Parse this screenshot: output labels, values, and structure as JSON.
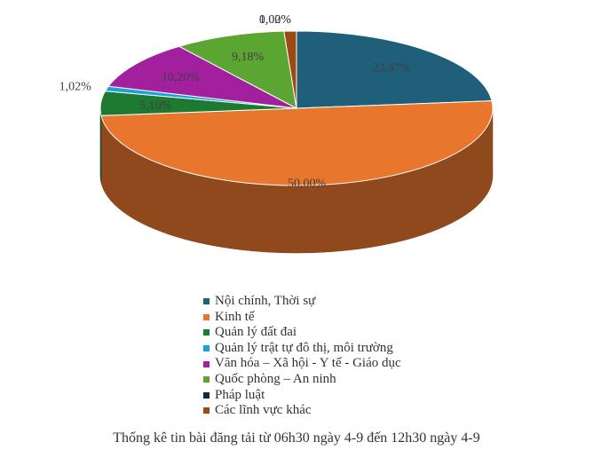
{
  "chart_data": {
    "type": "pie",
    "style": "3d",
    "title": "",
    "caption": "Thống kê tin bài đăng tải từ 06h30 ngày 4-9 đến 12h30 ngày 4-9",
    "legend_position": "bottom",
    "slices": [
      {
        "label": "Nội chính, Thời sự",
        "value": 23.47,
        "value_label": "23,47%",
        "color": "#1F5F7A"
      },
      {
        "label": "Kinh tế",
        "value": 50.0,
        "value_label": "50,00%",
        "color": "#E8762D"
      },
      {
        "label": "Quản lý đất đai",
        "value": 5.1,
        "value_label": "5,10%",
        "color": "#1E7A30"
      },
      {
        "label": "Quản lý trật tự đô thị, môi trường",
        "value": 1.02,
        "value_label": "1,02%",
        "color": "#1BA3D6"
      },
      {
        "label": "Văn hóa – Xã hội - Y tế - Giáo dục",
        "value": 10.2,
        "value_label": "10,20%",
        "color": "#A21F9E"
      },
      {
        "label": "Quốc phòng – An ninh",
        "value": 9.18,
        "value_label": "9,18%",
        "color": "#5BA532"
      },
      {
        "label": "Pháp luật",
        "value": 0.0,
        "value_label": "0,00%",
        "color": "#0D2A44"
      },
      {
        "label": "Các lĩnh vực khác",
        "value": 1.02,
        "value_label": "1,02%",
        "color": "#9A4A12"
      }
    ]
  }
}
